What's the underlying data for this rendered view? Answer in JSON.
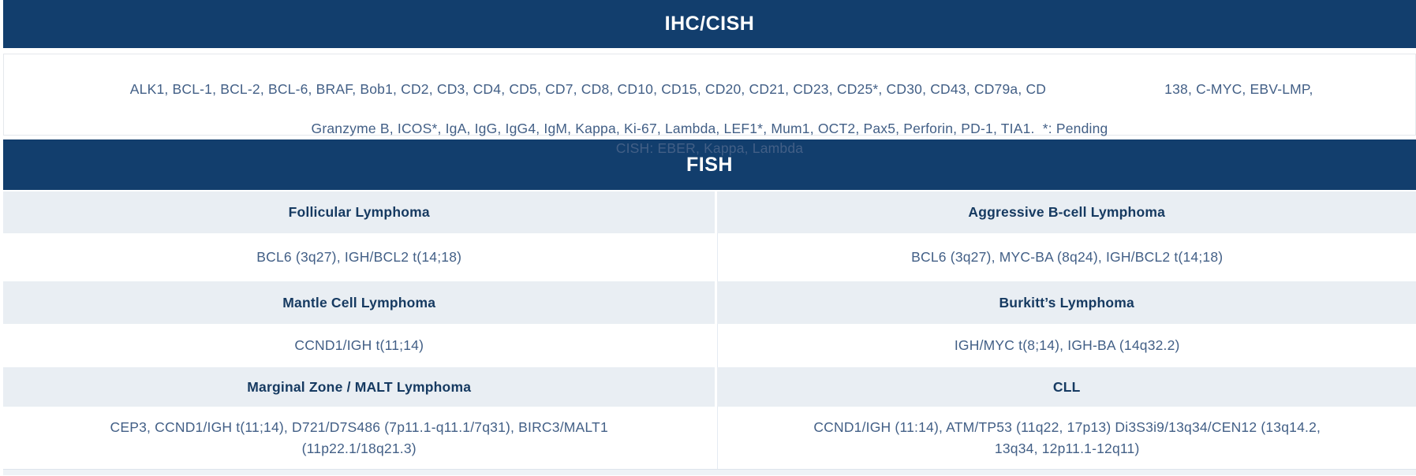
{
  "colors": {
    "banner_bg": "#123e6d",
    "banner_text": "#ffffff",
    "row_header_bg": "#e9eef3",
    "row_header_text": "#163a61",
    "body_text": "#425f86"
  },
  "ihc_cish": {
    "title": "IHC/CISH",
    "line1_left": "ALK1, BCL-1, BCL-2, BCL-6, BRAF, Bob1, CD2, CD3, CD4, CD5, CD7, CD8, CD10, CD15, CD20, CD21, CD23, CD25*, CD30, CD43, CD79a, CD",
    "line1_right": "138, C-MYC, EBV-LMP,",
    "line2": "Granzyme B, ICOS*, IgA, IgG, IgG4, IgM, Kappa, Ki-67, Lambda, LEF1*, Mum1, OCT2, Pax5, Perforin, PD-1, TIA1.  *: Pending",
    "line3": "CISH: EBER, Kappa, Lambda"
  },
  "fish": {
    "title": "FISH",
    "rows": [
      {
        "left_header": "Follicular Lymphoma",
        "right_header": "Aggressive B-cell Lymphoma",
        "left_value": "BCL6 (3q27), IGH/BCL2 t(14;18)",
        "right_value": "BCL6 (3q27), MYC-BA (8q24), IGH/BCL2 t(14;18)"
      },
      {
        "left_header": "Mantle Cell Lymphoma",
        "right_header": "Burkitt’s Lymphoma",
        "left_value": "CCND1/IGH t(11;14)",
        "right_value": "IGH/MYC t(8;14), IGH-BA (14q32.2)"
      },
      {
        "left_header": "Marginal Zone / MALT Lymphoma",
        "right_header": "CLL",
        "left_value": "CEP3, CCND1/IGH t(11;14), D721/D7S486 (7p11.1-q11.1/7q31), BIRC3/MALT1 (11p22.1/18q21.3)",
        "right_value": "CCND1/IGH (11:14), ATM/TP53 (11q22, 17p13) Di3S3i9/13q34/CEN12 (13q14.2, 13q34, 12p11.1-12q11)"
      }
    ]
  }
}
